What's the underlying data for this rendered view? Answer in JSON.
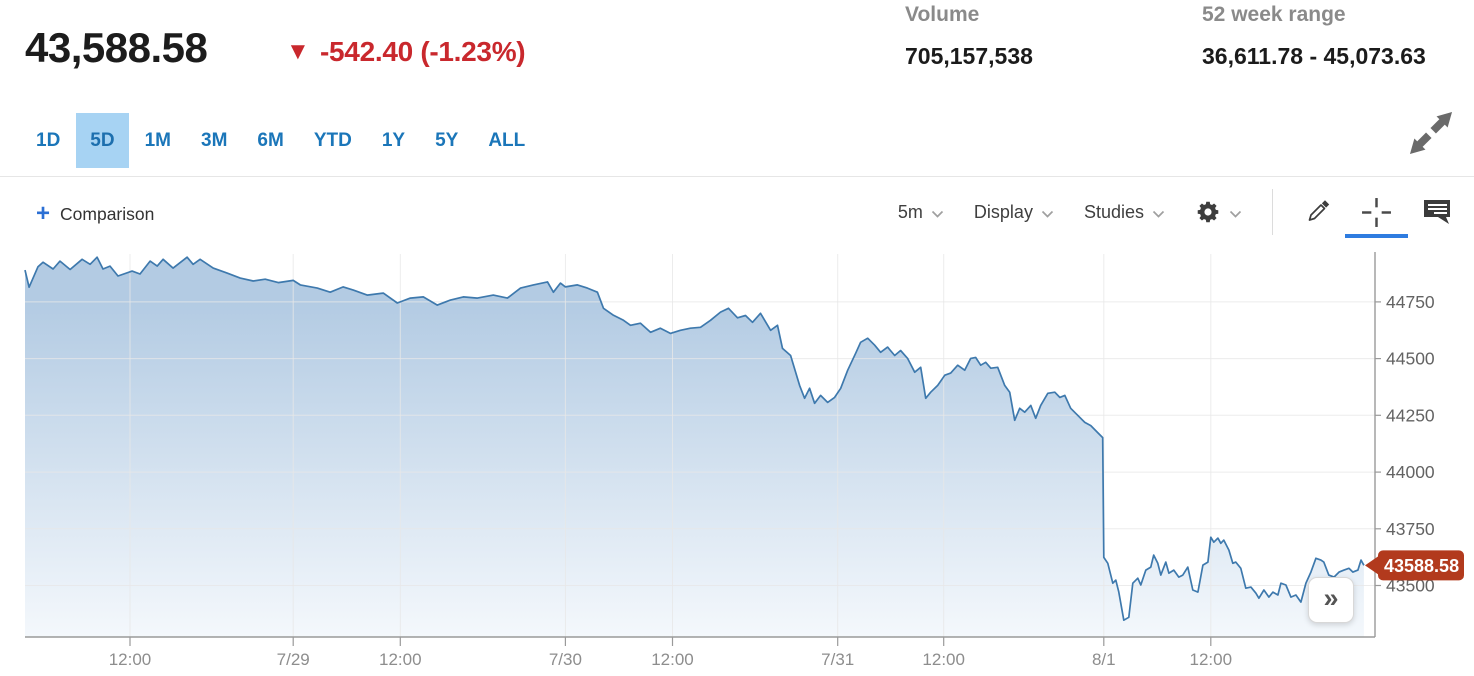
{
  "header": {
    "price": "43,588.58",
    "direction": "down",
    "change": "-542.40 (-1.23%)",
    "stats": [
      {
        "label": "Volume",
        "value": "705,157,538"
      },
      {
        "label": "52 week range",
        "value": "36,611.78 - 45,073.63"
      }
    ]
  },
  "range_tabs": {
    "items": [
      "1D",
      "5D",
      "1M",
      "3M",
      "6M",
      "YTD",
      "1Y",
      "5Y",
      "ALL"
    ],
    "selected": "5D"
  },
  "toolbar": {
    "plus_glyph": "+",
    "comparison_label": "Comparison",
    "interval_label": "5m",
    "display_label": "Display",
    "studies_label": "Studies"
  },
  "icons": {
    "down_arrow": "▼",
    "expand": "expand-arrows",
    "gear": "gear",
    "pencil": "draw-pencil",
    "crosshair": "crosshair",
    "comment": "annotation-bubble",
    "chevron": "chevron-down",
    "collapse_glyph": "»"
  },
  "colors": {
    "negative_red": "#c9282d",
    "tag_red": "#b23a1d",
    "tab_blue": "#1b76b9",
    "tab_selected_bg": "#a7d3f3",
    "line_blue": "#3e79ad",
    "fill_top": "#b3cbe3",
    "fill_bottom": "#f4f8fc",
    "grid": "#e8e8e8",
    "axis": "#9a9a9a",
    "active_underline": "#2e7ce0"
  },
  "chart_data": {
    "type": "area",
    "title": "5-day intraday price (5m bars)",
    "xlabel": "",
    "ylabel": "",
    "legend": "none",
    "grid": true,
    "ylim": [
      43273,
      44970
    ],
    "y_ticks": [
      44750,
      44500,
      44250,
      44000,
      43750,
      43500
    ],
    "x_ticks": [
      {
        "f": 0.0778,
        "label": "12:00"
      },
      {
        "f": 0.1987,
        "label": "7/29"
      },
      {
        "f": 0.278,
        "label": "12:00"
      },
      {
        "f": 0.4003,
        "label": "7/30"
      },
      {
        "f": 0.4796,
        "label": "12:00"
      },
      {
        "f": 0.602,
        "label": "7/31"
      },
      {
        "f": 0.6805,
        "label": "12:00"
      },
      {
        "f": 0.7991,
        "label": "8/1"
      },
      {
        "f": 0.8784,
        "label": "12:00"
      }
    ],
    "last_price": 43588.58,
    "last_price_label": "43588.58",
    "series": [
      {
        "name": "price",
        "points": [
          [
            0.0,
            44890
          ],
          [
            0.003,
            44815
          ],
          [
            0.0096,
            44905
          ],
          [
            0.0133,
            44925
          ],
          [
            0.0208,
            44895
          ],
          [
            0.0259,
            44930
          ],
          [
            0.0334,
            44893
          ],
          [
            0.0423,
            44938
          ],
          [
            0.0482,
            44916
          ],
          [
            0.0534,
            44947
          ],
          [
            0.0578,
            44895
          ],
          [
            0.063,
            44908
          ],
          [
            0.0689,
            44864
          ],
          [
            0.0793,
            44886
          ],
          [
            0.0852,
            44873
          ],
          [
            0.0927,
            44930
          ],
          [
            0.0979,
            44908
          ],
          [
            0.1023,
            44938
          ],
          [
            0.1097,
            44899
          ],
          [
            0.1201,
            44947
          ],
          [
            0.1245,
            44916
          ],
          [
            0.1297,
            44938
          ],
          [
            0.1394,
            44899
          ],
          [
            0.1497,
            44877
          ],
          [
            0.1594,
            44855
          ],
          [
            0.169,
            44842
          ],
          [
            0.1779,
            44850
          ],
          [
            0.1876,
            44835
          ],
          [
            0.1987,
            44845
          ],
          [
            0.2039,
            44825
          ],
          [
            0.2165,
            44811
          ],
          [
            0.2261,
            44793
          ],
          [
            0.2357,
            44816
          ],
          [
            0.2432,
            44802
          ],
          [
            0.2535,
            44780
          ],
          [
            0.2654,
            44789
          ],
          [
            0.2758,
            44745
          ],
          [
            0.2854,
            44767
          ],
          [
            0.295,
            44772
          ],
          [
            0.3054,
            44736
          ],
          [
            0.3151,
            44758
          ],
          [
            0.3247,
            44772
          ],
          [
            0.3351,
            44767
          ],
          [
            0.3469,
            44780
          ],
          [
            0.3573,
            44767
          ],
          [
            0.367,
            44811
          ],
          [
            0.3766,
            44825
          ],
          [
            0.387,
            44838
          ],
          [
            0.3914,
            44793
          ],
          [
            0.3966,
            44833
          ],
          [
            0.4003,
            44816
          ],
          [
            0.4092,
            44825
          ],
          [
            0.4166,
            44811
          ],
          [
            0.424,
            44793
          ],
          [
            0.4285,
            44722
          ],
          [
            0.4359,
            44691
          ],
          [
            0.4433,
            44669
          ],
          [
            0.4485,
            44647
          ],
          [
            0.4559,
            44656
          ],
          [
            0.4633,
            44616
          ],
          [
            0.4707,
            44634
          ],
          [
            0.4781,
            44611
          ],
          [
            0.4855,
            44625
          ],
          [
            0.4929,
            44634
          ],
          [
            0.5004,
            44638
          ],
          [
            0.5078,
            44669
          ],
          [
            0.5152,
            44705
          ],
          [
            0.5211,
            44722
          ],
          [
            0.5278,
            44680
          ],
          [
            0.5337,
            44690
          ],
          [
            0.5389,
            44660
          ],
          [
            0.5448,
            44700
          ],
          [
            0.5523,
            44625
          ],
          [
            0.5574,
            44647
          ],
          [
            0.5611,
            44545
          ],
          [
            0.5671,
            44514
          ],
          [
            0.5738,
            44382
          ],
          [
            0.5775,
            44325
          ],
          [
            0.5812,
            44369
          ],
          [
            0.5849,
            44303
          ],
          [
            0.5893,
            44338
          ],
          [
            0.5945,
            44307
          ],
          [
            0.5997,
            44329
          ],
          [
            0.6042,
            44369
          ],
          [
            0.6094,
            44449
          ],
          [
            0.6153,
            44524
          ],
          [
            0.619,
            44572
          ],
          [
            0.6242,
            44590
          ],
          [
            0.6294,
            44559
          ],
          [
            0.6338,
            44528
          ],
          [
            0.639,
            44551
          ],
          [
            0.6442,
            44514
          ],
          [
            0.6486,
            44536
          ],
          [
            0.6538,
            44501
          ],
          [
            0.659,
            44440
          ],
          [
            0.6635,
            44462
          ],
          [
            0.6672,
            44325
          ],
          [
            0.6709,
            44352
          ],
          [
            0.6761,
            44382
          ],
          [
            0.6813,
            44427
          ],
          [
            0.6857,
            44436
          ],
          [
            0.6909,
            44471
          ],
          [
            0.6961,
            44449
          ],
          [
            0.7005,
            44501
          ],
          [
            0.7042,
            44505
          ],
          [
            0.7079,
            44471
          ],
          [
            0.7116,
            44484
          ],
          [
            0.7154,
            44458
          ],
          [
            0.7205,
            44462
          ],
          [
            0.7257,
            44382
          ],
          [
            0.7294,
            44352
          ],
          [
            0.7331,
            44228
          ],
          [
            0.7368,
            44281
          ],
          [
            0.7405,
            44264
          ],
          [
            0.745,
            44294
          ],
          [
            0.7487,
            44237
          ],
          [
            0.7524,
            44294
          ],
          [
            0.7576,
            44347
          ],
          [
            0.7628,
            44352
          ],
          [
            0.7665,
            44329
          ],
          [
            0.7702,
            44338
          ],
          [
            0.7746,
            44281
          ],
          [
            0.7798,
            44250
          ],
          [
            0.785,
            44219
          ],
          [
            0.7895,
            44205
          ],
          [
            0.7946,
            44174
          ],
          [
            0.7983,
            44152
          ],
          [
            0.7991,
            43624
          ],
          [
            0.8021,
            43598
          ],
          [
            0.8058,
            43510
          ],
          [
            0.808,
            43524
          ],
          [
            0.8102,
            43471
          ],
          [
            0.8139,
            43347
          ],
          [
            0.8176,
            43360
          ],
          [
            0.8206,
            43510
          ],
          [
            0.8243,
            43532
          ],
          [
            0.8265,
            43502
          ],
          [
            0.8302,
            43568
          ],
          [
            0.8339,
            43581
          ],
          [
            0.8361,
            43634
          ],
          [
            0.8391,
            43598
          ],
          [
            0.8413,
            43546
          ],
          [
            0.845,
            43603
          ],
          [
            0.8473,
            43554
          ],
          [
            0.851,
            43568
          ],
          [
            0.8547,
            43537
          ],
          [
            0.8576,
            43546
          ],
          [
            0.8613,
            43581
          ],
          [
            0.865,
            43480
          ],
          [
            0.8688,
            43471
          ],
          [
            0.8725,
            43590
          ],
          [
            0.8762,
            43603
          ],
          [
            0.8784,
            43713
          ],
          [
            0.8806,
            43691
          ],
          [
            0.8836,
            43709
          ],
          [
            0.8858,
            43686
          ],
          [
            0.888,
            43700
          ],
          [
            0.8918,
            43656
          ],
          [
            0.8947,
            43598
          ],
          [
            0.8969,
            43603
          ],
          [
            0.9006,
            43576
          ],
          [
            0.9043,
            43488
          ],
          [
            0.9081,
            43493
          ],
          [
            0.9118,
            43466
          ],
          [
            0.914,
            43444
          ],
          [
            0.9177,
            43480
          ],
          [
            0.9214,
            43449
          ],
          [
            0.9244,
            43471
          ],
          [
            0.9281,
            43458
          ],
          [
            0.9303,
            43510
          ],
          [
            0.934,
            43502
          ],
          [
            0.9377,
            43449
          ],
          [
            0.9414,
            43458
          ],
          [
            0.9451,
            43427
          ],
          [
            0.9488,
            43510
          ],
          [
            0.9525,
            43559
          ],
          [
            0.9562,
            43620
          ],
          [
            0.9599,
            43612
          ],
          [
            0.9621,
            43603
          ],
          [
            0.9658,
            43546
          ],
          [
            0.9696,
            43537
          ],
          [
            0.9733,
            43559
          ],
          [
            0.977,
            43568
          ],
          [
            0.9807,
            43576
          ],
          [
            0.9836,
            43559
          ],
          [
            0.9873,
            43568
          ],
          [
            0.9896,
            43612
          ],
          [
            0.9918,
            43589
          ]
        ]
      }
    ]
  },
  "chart_overlay": {
    "collapse_button": "»"
  }
}
